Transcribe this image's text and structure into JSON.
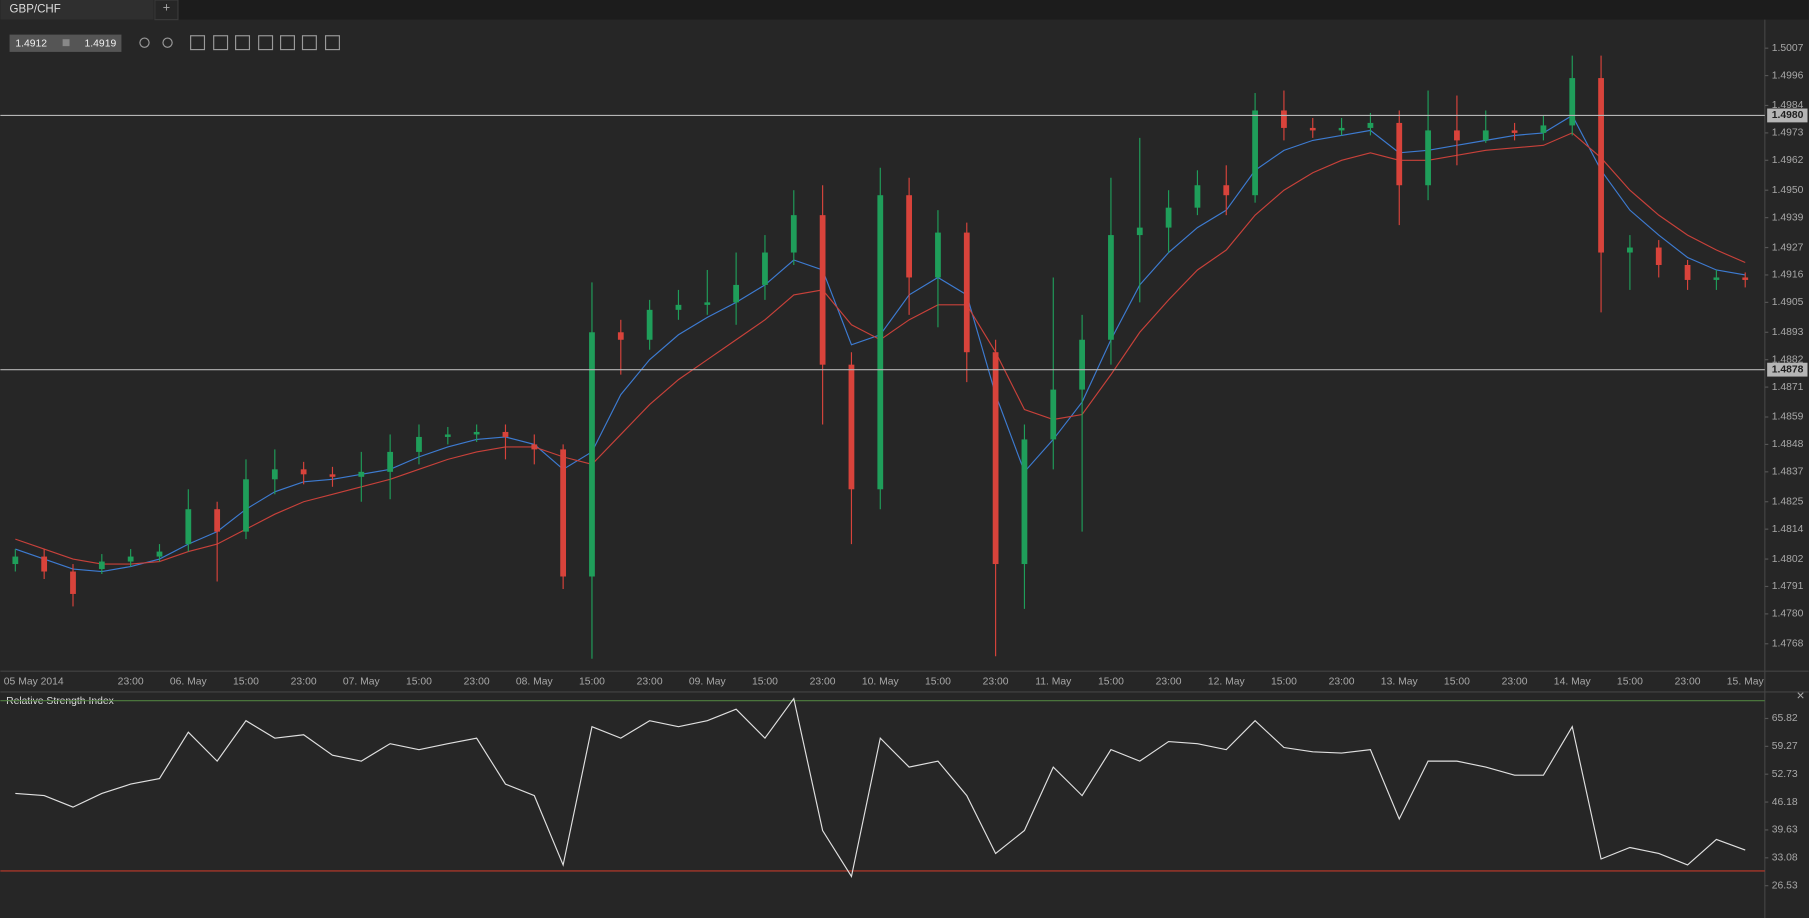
{
  "ui": {
    "tab": "GBP/CHF",
    "new_tab": "+",
    "bid": "1.4912",
    "ask": "1.4919",
    "close": "×"
  },
  "chart_data": [
    {
      "type": "candlestick",
      "up_color": "#1f9e5a",
      "down_color": "#d8433b",
      "categories": [
        "05 May 2014",
        null,
        null,
        null,
        "23:00",
        null,
        "06. May",
        null,
        "15:00",
        null,
        "23:00",
        null,
        "07. May",
        null,
        "15:00",
        null,
        "23:00",
        null,
        "08. May",
        null,
        "15:00",
        null,
        "23:00",
        null,
        "09. May",
        null,
        "15:00",
        null,
        "23:00",
        null,
        "10. May",
        null,
        "15:00",
        null,
        "23:00",
        null,
        "11. May",
        null,
        "15:00",
        null,
        "23:00",
        null,
        "12. May",
        null,
        "15:00",
        null,
        "23:00",
        null,
        "13. May",
        null,
        "15:00",
        null,
        "23:00",
        null,
        "14. May",
        null,
        "15:00",
        null,
        "23:00",
        null,
        "15. May"
      ],
      "open": [
        1.48,
        1.4803,
        1.4797,
        1.4798,
        1.4801,
        1.4803,
        1.4808,
        1.4822,
        1.4813,
        1.4834,
        1.4838,
        1.4836,
        1.4835,
        1.4837,
        1.4845,
        1.4851,
        1.4852,
        1.4853,
        1.4848,
        1.4846,
        1.4795,
        1.4893,
        1.489,
        1.4902,
        1.4904,
        1.4905,
        1.4912,
        1.4925,
        1.494,
        1.488,
        1.483,
        1.4948,
        1.4915,
        1.4933,
        1.4885,
        1.48,
        1.485,
        1.487,
        1.489,
        1.4932,
        1.4935,
        1.4943,
        1.4952,
        1.4948,
        1.4982,
        1.4975,
        1.4974,
        1.4975,
        1.4977,
        1.4952,
        1.4974,
        1.497,
        1.4974,
        1.4973,
        1.4976,
        1.4995,
        1.4925,
        1.4927,
        1.492,
        1.4914,
        1.4915
      ],
      "high": [
        1.4806,
        1.4806,
        1.48,
        1.4804,
        1.4806,
        1.4808,
        1.483,
        1.4825,
        1.4842,
        1.4846,
        1.4841,
        1.4839,
        1.4845,
        1.4852,
        1.4856,
        1.4855,
        1.4856,
        1.4856,
        1.4852,
        1.4848,
        1.4913,
        1.4898,
        1.4906,
        1.491,
        1.4918,
        1.4925,
        1.4932,
        1.495,
        1.4952,
        1.4885,
        1.4959,
        1.4955,
        1.4942,
        1.4937,
        1.489,
        1.4856,
        1.4915,
        1.49,
        1.4955,
        1.4971,
        1.495,
        1.4958,
        1.496,
        1.4989,
        1.499,
        1.4979,
        1.4979,
        1.4981,
        1.4982,
        1.499,
        1.4988,
        1.4982,
        1.4977,
        1.498,
        1.5004,
        1.5004,
        1.4932,
        1.493,
        1.4922,
        1.4918,
        1.4917
      ],
      "low": [
        1.4797,
        1.4794,
        1.4783,
        1.4796,
        1.4799,
        1.4801,
        1.4805,
        1.4793,
        1.481,
        1.4828,
        1.4832,
        1.4831,
        1.4825,
        1.4826,
        1.484,
        1.4848,
        1.4849,
        1.4842,
        1.484,
        1.479,
        1.4762,
        1.4876,
        1.4886,
        1.4898,
        1.49,
        1.4896,
        1.4906,
        1.492,
        1.4856,
        1.4808,
        1.4822,
        1.49,
        1.4895,
        1.4873,
        1.4763,
        1.4782,
        1.4838,
        1.4813,
        1.488,
        1.4905,
        1.4925,
        1.494,
        1.494,
        1.4945,
        1.497,
        1.4971,
        1.4972,
        1.4972,
        1.4936,
        1.4946,
        1.496,
        1.4969,
        1.497,
        1.497,
        1.4972,
        1.4901,
        1.491,
        1.4915,
        1.491,
        1.491,
        1.4911
      ],
      "close": [
        1.4803,
        1.4797,
        1.4788,
        1.4801,
        1.4803,
        1.4805,
        1.4822,
        1.4813,
        1.4834,
        1.4838,
        1.4836,
        1.4835,
        1.4837,
        1.4845,
        1.4851,
        1.4852,
        1.4853,
        1.4851,
        1.4846,
        1.4795,
        1.4893,
        1.489,
        1.4902,
        1.4904,
        1.4905,
        1.4912,
        1.4925,
        1.494,
        1.488,
        1.483,
        1.4948,
        1.4915,
        1.4933,
        1.4885,
        1.48,
        1.485,
        1.487,
        1.489,
        1.4932,
        1.4935,
        1.4943,
        1.4952,
        1.4948,
        1.4982,
        1.4975,
        1.4974,
        1.4975,
        1.4977,
        1.4952,
        1.4974,
        1.497,
        1.4974,
        1.4973,
        1.4976,
        1.4995,
        1.4925,
        1.4927,
        1.492,
        1.4914,
        1.4915,
        1.4914
      ],
      "overlays": [
        {
          "color": "#3d7bd1",
          "values": [
            1.4806,
            1.4802,
            1.4798,
            1.4797,
            1.4799,
            1.4802,
            1.4808,
            1.4813,
            1.4822,
            1.4829,
            1.4833,
            1.4834,
            1.4836,
            1.4838,
            1.4843,
            1.4847,
            1.485,
            1.4851,
            1.4848,
            1.4838,
            1.4845,
            1.4868,
            1.4882,
            1.4892,
            1.4899,
            1.4905,
            1.4912,
            1.4922,
            1.4918,
            1.4888,
            1.4892,
            1.4908,
            1.4915,
            1.4908,
            1.4868,
            1.4837,
            1.485,
            1.4865,
            1.489,
            1.4912,
            1.4925,
            1.4935,
            1.4942,
            1.4958,
            1.4966,
            1.497,
            1.4972,
            1.4974,
            1.4965,
            1.4966,
            1.4968,
            1.497,
            1.4972,
            1.4973,
            1.498,
            1.4958,
            1.4942,
            1.4932,
            1.4923,
            1.4918,
            1.4916
          ]
        },
        {
          "color": "#c8413a",
          "values": [
            1.481,
            1.4806,
            1.4802,
            1.48,
            1.48,
            1.4801,
            1.4805,
            1.4808,
            1.4814,
            1.482,
            1.4825,
            1.4828,
            1.4831,
            1.4834,
            1.4838,
            1.4842,
            1.4845,
            1.4847,
            1.4847,
            1.4843,
            1.484,
            1.4852,
            1.4864,
            1.4874,
            1.4882,
            1.489,
            1.4898,
            1.4908,
            1.491,
            1.4896,
            1.489,
            1.4898,
            1.4904,
            1.4904,
            1.4885,
            1.4862,
            1.4858,
            1.486,
            1.4876,
            1.4893,
            1.4906,
            1.4918,
            1.4926,
            1.494,
            1.495,
            1.4957,
            1.4962,
            1.4965,
            1.4962,
            1.4962,
            1.4964,
            1.4966,
            1.4967,
            1.4968,
            1.4973,
            1.4963,
            1.495,
            1.494,
            1.4932,
            1.4926,
            1.4921
          ]
        }
      ],
      "hlines": [
        {
          "value": 1.498,
          "label": "1.4980"
        },
        1.4878
      ],
      "hline_color": "#b5b5b5",
      "ylim": [
        1.4757,
        1.5018
      ],
      "yticks": [
        1.5007,
        1.4996,
        1.4984,
        1.4973,
        1.4962,
        {
          "value": 1.495,
          "label": "1.4950"
        },
        1.4939,
        1.4927,
        1.4916,
        1.4905,
        1.4893,
        1.4882,
        1.4871,
        1.4859,
        1.4848,
        1.4837,
        1.4825,
        1.4814,
        1.4802,
        1.4791,
        {
          "value": 1.478,
          "label": "1.4780"
        },
        1.4768
      ]
    },
    {
      "type": "line",
      "title": "Relative Strength Index",
      "color": "#e0e0e0",
      "values": [
        48.2,
        47.7,
        45.0,
        48.2,
        50.4,
        51.7,
        62.6,
        55.8,
        65.3,
        61.2,
        62.0,
        57.2,
        55.8,
        59.9,
        58.5,
        59.9,
        61.2,
        50.4,
        47.7,
        31.4,
        63.9,
        61.2,
        65.3,
        63.9,
        65.3,
        68.0,
        61.2,
        70.5,
        39.5,
        28.7,
        61.2,
        54.4,
        55.8,
        47.7,
        34.1,
        39.5,
        54.4,
        47.7,
        58.5,
        55.8,
        60.4,
        59.9,
        58.5,
        65.3,
        59.0,
        58.0,
        57.7,
        58.5,
        42.2,
        55.8,
        55.8,
        54.4,
        52.5,
        52.5,
        63.9,
        32.8,
        35.5,
        34.1,
        31.4,
        37.4,
        34.9
      ],
      "levels": [
        {
          "value": 70,
          "color": "#4f7f3f"
        },
        {
          "value": 30,
          "color": "#c0392b"
        }
      ],
      "ylim": [
        18.94,
        71.24
      ],
      "yticks": [
        65.82,
        59.27,
        52.73,
        46.18,
        39.63,
        33.08,
        26.53
      ]
    }
  ]
}
